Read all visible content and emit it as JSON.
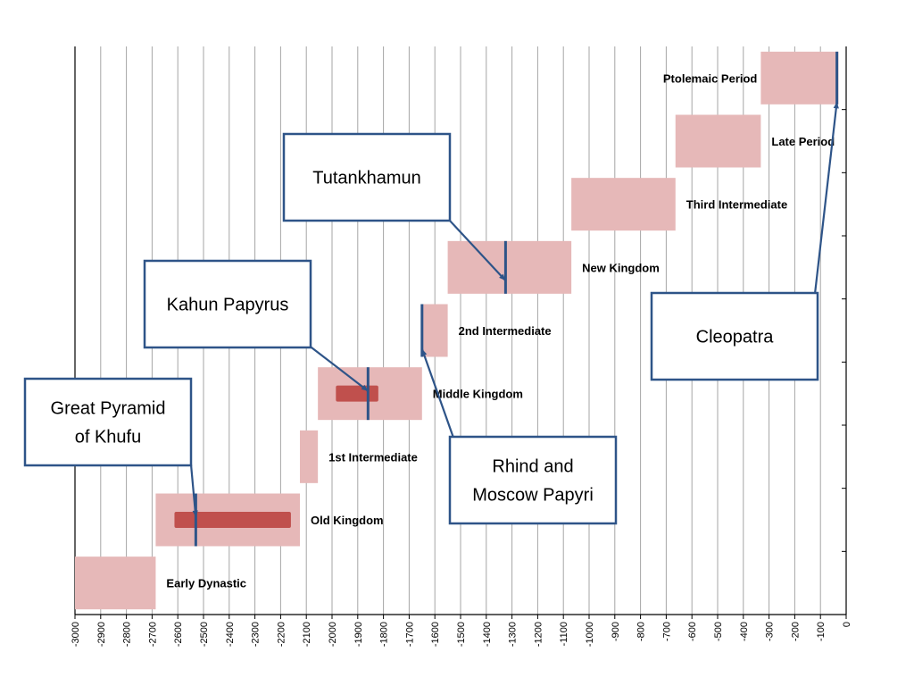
{
  "chart_data": {
    "type": "bar",
    "subtype": "floating-horizontal-timeline",
    "title": "",
    "xlabel": "",
    "ylabel": "",
    "xlim": [
      -3000,
      0
    ],
    "x_ticks": [
      -3000,
      -2900,
      -2800,
      -2700,
      -2600,
      -2500,
      -2400,
      -2300,
      -2200,
      -2100,
      -2000,
      -1900,
      -1800,
      -1700,
      -1600,
      -1500,
      -1400,
      -1300,
      -1200,
      -1100,
      -1000,
      -900,
      -800,
      -700,
      -600,
      -500,
      -400,
      -300,
      -200,
      -100,
      0
    ],
    "grid": "vertical",
    "colors": {
      "period": "#e6b8b8",
      "highlight": "#c0504d",
      "marker": "#2e5488",
      "grid": "#a6a6a6"
    },
    "periods": [
      {
        "name": "Early Dynastic",
        "start": -3000,
        "end": -2686
      },
      {
        "name": "Old Kingdom",
        "start": -2686,
        "end": -2125
      },
      {
        "name": "1st Intermediate",
        "start": -2125,
        "end": -2055
      },
      {
        "name": "Middle Kingdom",
        "start": -2055,
        "end": -1650
      },
      {
        "name": "2nd Intermediate",
        "start": -1650,
        "end": -1550
      },
      {
        "name": "New Kingdom",
        "start": -1550,
        "end": -1069
      },
      {
        "name": "Third Intermediate",
        "start": -1069,
        "end": -664
      },
      {
        "name": "Late Period",
        "start": -664,
        "end": -332
      },
      {
        "name": "Ptolemaic Period",
        "start": -332,
        "end": -30
      }
    ],
    "highlights": [
      {
        "period_index": 1,
        "start": -2613,
        "end": -2160
      },
      {
        "period_index": 3,
        "start": -1985,
        "end": -1820
      }
    ],
    "events": [
      {
        "label": "Great Pyramid of Khufu",
        "year": -2530,
        "period_index": 1
      },
      {
        "label": "Kahun Papyrus",
        "year": -1860,
        "period_index": 3
      },
      {
        "label": "Rhind and Moscow Papyri",
        "year": -1650,
        "period_index": 4
      },
      {
        "label": "Tutankhamun",
        "year": -1325,
        "period_index": 5
      },
      {
        "label": "Cleopatra",
        "year": -36,
        "period_index": 8
      }
    ]
  }
}
